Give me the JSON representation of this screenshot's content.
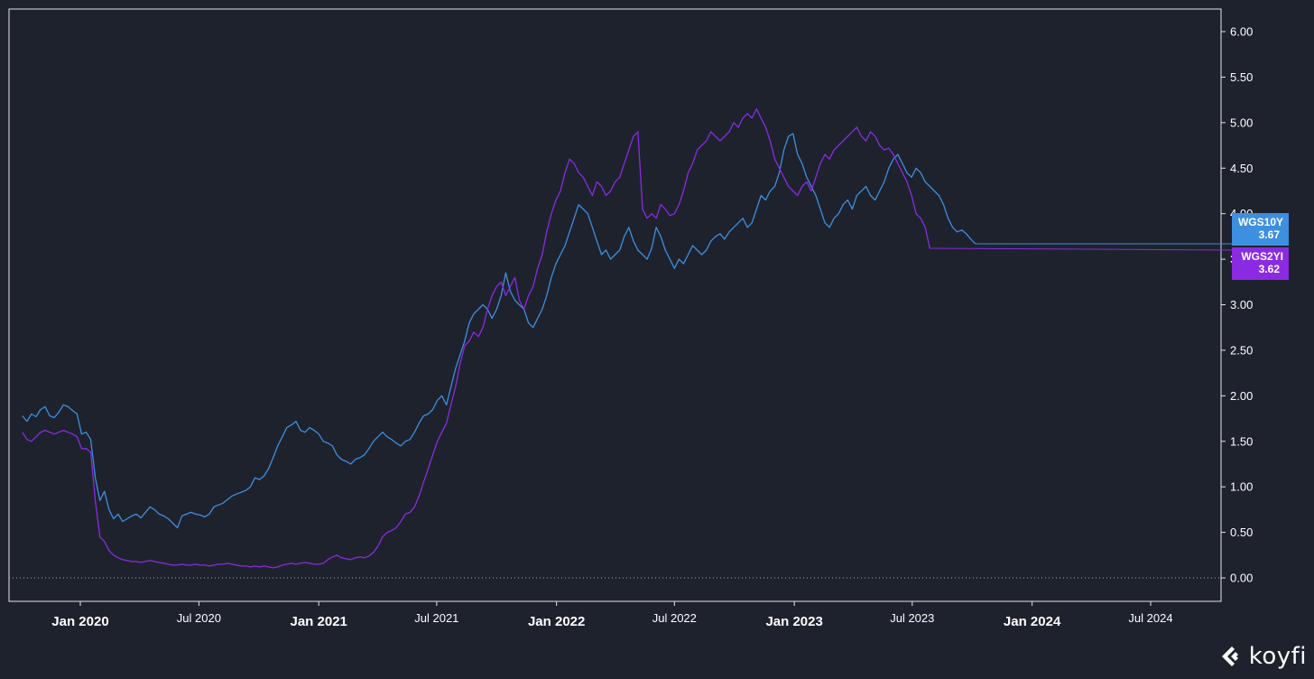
{
  "chart_data": {
    "type": "line",
    "x_start": "2019-10-04",
    "x_step_days": 7,
    "y_ticks": [
      "6.00",
      "5.50",
      "5.00",
      "4.50",
      "4.00",
      "3.50",
      "3.00",
      "2.50",
      "2.00",
      "1.50",
      "1.00",
      "0.50",
      "0.00"
    ],
    "ylim": [
      0,
      6
    ],
    "x_ticks": [
      {
        "label": "Jan 2020",
        "date": "2020-01-01",
        "major": true
      },
      {
        "label": "Jul 2020",
        "date": "2020-07-01",
        "major": false
      },
      {
        "label": "Jan 2021",
        "date": "2021-01-01",
        "major": true
      },
      {
        "label": "Jul 2021",
        "date": "2021-07-01",
        "major": false
      },
      {
        "label": "Jan 2022",
        "date": "2022-01-01",
        "major": true
      },
      {
        "label": "Jul 2022",
        "date": "2022-07-01",
        "major": false
      },
      {
        "label": "Jan 2023",
        "date": "2023-01-01",
        "major": true
      },
      {
        "label": "Jul 2023",
        "date": "2023-07-01",
        "major": false
      },
      {
        "label": "Jan 2024",
        "date": "2024-01-01",
        "major": true
      },
      {
        "label": "Jul 2024",
        "date": "2024-07-01",
        "major": false
      }
    ],
    "zero_line": true,
    "series": [
      {
        "name": "WGS10YR",
        "tag_label": "WGS10Y",
        "last_value": "3.67",
        "color": "#3d8fe0",
        "values": [
          1.78,
          1.72,
          1.8,
          1.77,
          1.85,
          1.88,
          1.78,
          1.76,
          1.82,
          1.9,
          1.88,
          1.84,
          1.8,
          1.58,
          1.6,
          1.52,
          1.1,
          0.85,
          0.95,
          0.75,
          0.65,
          0.7,
          0.62,
          0.65,
          0.68,
          0.7,
          0.66,
          0.72,
          0.78,
          0.75,
          0.7,
          0.68,
          0.65,
          0.6,
          0.55,
          0.68,
          0.7,
          0.72,
          0.7,
          0.69,
          0.67,
          0.7,
          0.78,
          0.8,
          0.82,
          0.86,
          0.9,
          0.92,
          0.94,
          0.96,
          1.0,
          1.1,
          1.08,
          1.12,
          1.2,
          1.32,
          1.45,
          1.55,
          1.65,
          1.68,
          1.72,
          1.62,
          1.6,
          1.65,
          1.62,
          1.58,
          1.5,
          1.48,
          1.45,
          1.35,
          1.3,
          1.28,
          1.25,
          1.3,
          1.32,
          1.35,
          1.42,
          1.5,
          1.55,
          1.6,
          1.55,
          1.52,
          1.48,
          1.45,
          1.5,
          1.52,
          1.6,
          1.7,
          1.78,
          1.8,
          1.85,
          1.95,
          2.0,
          1.9,
          2.1,
          2.3,
          2.45,
          2.6,
          2.8,
          2.9,
          2.95,
          3.0,
          2.95,
          2.85,
          2.95,
          3.1,
          3.35,
          3.15,
          3.05,
          3.0,
          2.95,
          2.8,
          2.75,
          2.85,
          2.95,
          3.1,
          3.3,
          3.45,
          3.55,
          3.65,
          3.8,
          3.95,
          4.1,
          4.05,
          4.0,
          3.85,
          3.7,
          3.55,
          3.6,
          3.5,
          3.55,
          3.6,
          3.75,
          3.85,
          3.7,
          3.6,
          3.55,
          3.5,
          3.62,
          3.85,
          3.75,
          3.6,
          3.5,
          3.4,
          3.5,
          3.45,
          3.55,
          3.65,
          3.6,
          3.55,
          3.6,
          3.7,
          3.75,
          3.78,
          3.72,
          3.8,
          3.85,
          3.9,
          3.95,
          3.85,
          3.9,
          4.05,
          4.2,
          4.15,
          4.25,
          4.3,
          4.45,
          4.7,
          4.85,
          4.88,
          4.65,
          4.55,
          4.4,
          4.3,
          4.2,
          4.05,
          3.9,
          3.85,
          3.95,
          4.0,
          4.1,
          4.15,
          4.05,
          4.2,
          4.25,
          4.3,
          4.2,
          4.15,
          4.25,
          4.35,
          4.5,
          4.6,
          4.65,
          4.55,
          4.45,
          4.4,
          4.5,
          4.45,
          4.35,
          4.3,
          4.25,
          4.2,
          4.1,
          3.95,
          3.85,
          3.8,
          3.82,
          3.78,
          3.72,
          3.67
        ]
      },
      {
        "name": "WGS2YR",
        "tag_label": "WGS2YI",
        "last_value": "3.62",
        "color": "#8a2be2",
        "values": [
          1.6,
          1.52,
          1.5,
          1.55,
          1.6,
          1.62,
          1.6,
          1.58,
          1.6,
          1.62,
          1.6,
          1.58,
          1.55,
          1.42,
          1.42,
          1.38,
          0.85,
          0.45,
          0.4,
          0.3,
          0.25,
          0.22,
          0.2,
          0.19,
          0.18,
          0.18,
          0.17,
          0.18,
          0.19,
          0.18,
          0.17,
          0.16,
          0.15,
          0.14,
          0.14,
          0.15,
          0.14,
          0.14,
          0.15,
          0.14,
          0.14,
          0.13,
          0.14,
          0.15,
          0.15,
          0.16,
          0.15,
          0.14,
          0.13,
          0.13,
          0.12,
          0.13,
          0.12,
          0.13,
          0.12,
          0.11,
          0.12,
          0.14,
          0.15,
          0.16,
          0.15,
          0.16,
          0.17,
          0.16,
          0.15,
          0.15,
          0.16,
          0.2,
          0.23,
          0.25,
          0.22,
          0.21,
          0.2,
          0.22,
          0.23,
          0.22,
          0.24,
          0.28,
          0.35,
          0.45,
          0.5,
          0.52,
          0.55,
          0.62,
          0.7,
          0.72,
          0.78,
          0.9,
          1.05,
          1.2,
          1.35,
          1.5,
          1.6,
          1.7,
          1.9,
          2.1,
          2.35,
          2.55,
          2.6,
          2.7,
          2.65,
          2.75,
          2.95,
          3.1,
          3.2,
          3.25,
          3.1,
          3.2,
          3.3,
          3.05,
          2.95,
          3.1,
          3.2,
          3.4,
          3.55,
          3.8,
          4.0,
          4.15,
          4.25,
          4.45,
          4.6,
          4.55,
          4.45,
          4.4,
          4.3,
          4.2,
          4.35,
          4.3,
          4.2,
          4.25,
          4.35,
          4.4,
          4.55,
          4.7,
          4.85,
          4.9,
          4.05,
          3.95,
          4.0,
          3.95,
          4.1,
          4.05,
          3.98,
          4.0,
          4.1,
          4.25,
          4.45,
          4.55,
          4.7,
          4.75,
          4.8,
          4.9,
          4.85,
          4.8,
          4.85,
          4.9,
          5.0,
          4.95,
          5.05,
          5.1,
          5.05,
          5.15,
          5.05,
          4.95,
          4.8,
          4.6,
          4.5,
          4.4,
          4.3,
          4.25,
          4.2,
          4.3,
          4.35,
          4.25,
          4.4,
          4.55,
          4.65,
          4.6,
          4.7,
          4.75,
          4.8,
          4.85,
          4.9,
          4.95,
          4.85,
          4.8,
          4.9,
          4.85,
          4.75,
          4.7,
          4.72,
          4.65,
          4.55,
          4.45,
          4.35,
          4.2,
          4.0,
          3.95,
          3.85,
          3.62
        ]
      }
    ]
  },
  "logo": {
    "text": "koyfi"
  }
}
